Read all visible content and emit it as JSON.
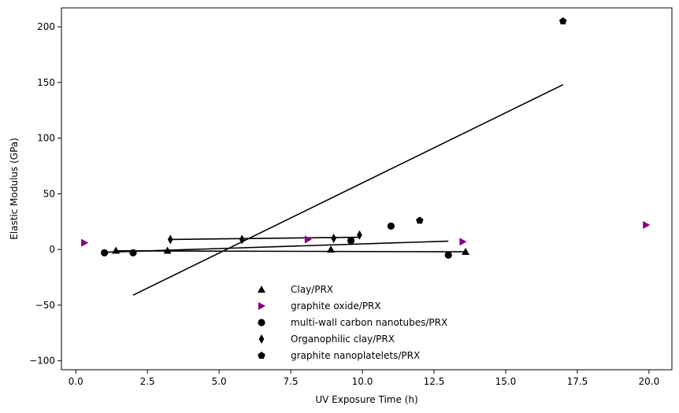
{
  "chart_data": {
    "type": "scatter",
    "xlabel": "UV Exposure Time (h)",
    "ylabel": "Elastic Modulus (GPa)",
    "xlim": [
      -0.5,
      20.8
    ],
    "ylim": [
      -108,
      217
    ],
    "xticks": [
      0.0,
      2.5,
      5.0,
      7.5,
      10.0,
      12.5,
      15.0,
      17.5,
      20.0
    ],
    "xtick_labels": [
      "0.0",
      "2.5",
      "5.0",
      "7.5",
      "10.0",
      "12.5",
      "15.0",
      "17.5",
      "20.0"
    ],
    "yticks": [
      -100,
      -50,
      0,
      50,
      100,
      150,
      200
    ],
    "ytick_labels": [
      "−100",
      "−50",
      "0",
      "50",
      "100",
      "150",
      "200"
    ],
    "grid": false,
    "legend_position": "lower-center",
    "series": [
      {
        "name": "Clay/PRX",
        "marker": "triangle-up",
        "color": "#000000",
        "points": [
          [
            1.4,
            -1
          ],
          [
            3.2,
            -1
          ],
          [
            8.9,
            0
          ],
          [
            13.6,
            -2
          ]
        ],
        "fit": [
          [
            1.4,
            -1.2
          ],
          [
            13.6,
            -2.1
          ]
        ]
      },
      {
        "name": "graphite oxide/PRX",
        "marker": "triangle-right",
        "color": "#800080",
        "points": [
          [
            0.3,
            6
          ],
          [
            8.1,
            9
          ],
          [
            13.5,
            7
          ],
          [
            19.9,
            22
          ]
        ]
      },
      {
        "name": "multi-wall carbon nanotubes/PRX",
        "marker": "circle",
        "color": "#000000",
        "points": [
          [
            1.0,
            -3
          ],
          [
            2.0,
            -3
          ],
          [
            9.6,
            8
          ],
          [
            11.0,
            21
          ],
          [
            13.0,
            -5
          ]
        ],
        "fit": [
          [
            1.0,
            -2.5
          ],
          [
            13.0,
            7.5
          ]
        ]
      },
      {
        "name": "Organophilic clay/PRX",
        "marker": "diamond",
        "color": "#000000",
        "points": [
          [
            3.3,
            9
          ],
          [
            5.8,
            9
          ],
          [
            9.0,
            10
          ],
          [
            9.9,
            13
          ]
        ],
        "fit": [
          [
            3.3,
            9
          ],
          [
            9.9,
            11
          ]
        ]
      },
      {
        "name": "graphite nanoplatelets/PRX",
        "marker": "pentagon",
        "color": "#000000",
        "points": [
          [
            12.0,
            26
          ],
          [
            17.0,
            205
          ]
        ],
        "fit": [
          [
            2.0,
            -41
          ],
          [
            17.0,
            148
          ]
        ]
      }
    ]
  }
}
